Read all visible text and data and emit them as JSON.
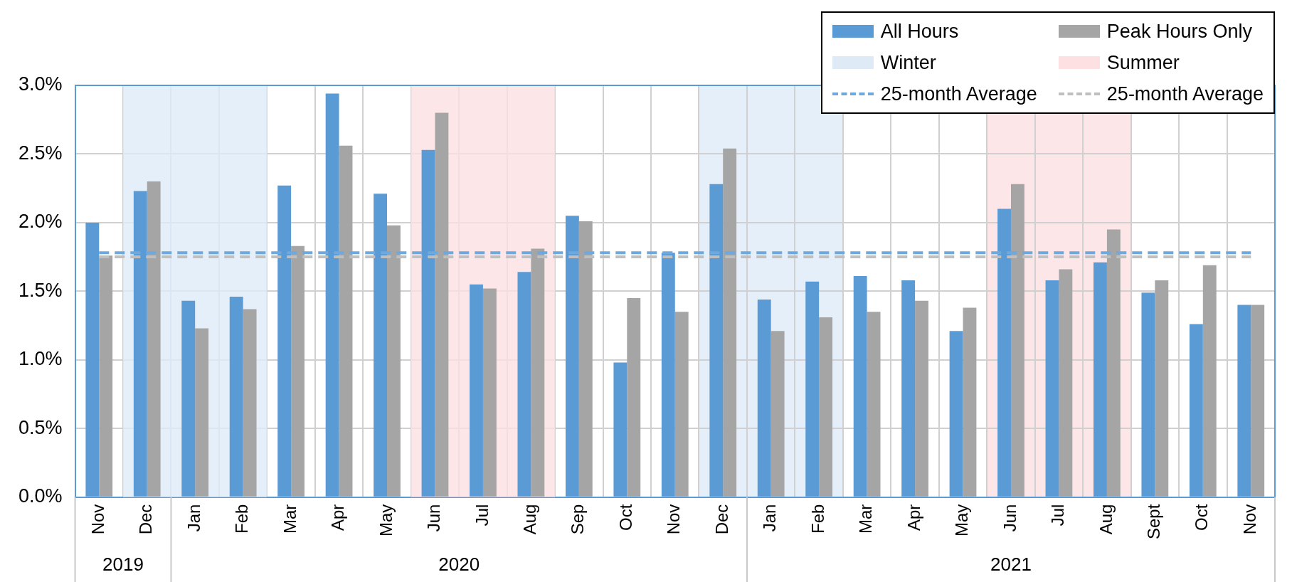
{
  "chart_data": {
    "type": "bar",
    "categories": [
      "Nov",
      "Dec",
      "Jan",
      "Feb",
      "Mar",
      "Apr",
      "May",
      "Jun",
      "Jul",
      "Aug",
      "Sep",
      "Oct",
      "Nov",
      "Dec",
      "Jan",
      "Feb",
      "Mar",
      "Apr",
      "May",
      "Jun",
      "Jul",
      "Aug",
      "Sept",
      "Oct",
      "Nov"
    ],
    "series": [
      {
        "name": "All Hours",
        "color": "#5b9bd5",
        "values": [
          2.0,
          2.23,
          1.43,
          1.46,
          2.27,
          2.94,
          2.21,
          2.53,
          1.55,
          1.64,
          2.05,
          0.98,
          1.78,
          2.28,
          1.44,
          1.57,
          1.61,
          1.58,
          1.21,
          2.1,
          1.58,
          1.71,
          1.49,
          1.26,
          1.4
        ]
      },
      {
        "name": "Peak Hours Only",
        "color": "#a5a5a5",
        "values": [
          1.76,
          2.3,
          1.23,
          1.37,
          1.83,
          2.56,
          1.98,
          2.8,
          1.52,
          1.81,
          2.01,
          1.45,
          1.35,
          2.54,
          1.21,
          1.31,
          1.35,
          1.43,
          1.38,
          2.28,
          1.66,
          1.95,
          1.58,
          1.69,
          1.4
        ]
      }
    ],
    "bands": [
      {
        "axis": "x",
        "from": "Dec",
        "to": "Feb",
        "label": "Winter",
        "color": "#deebf7"
      },
      {
        "axis": "x",
        "from": "Jun",
        "to": "Aug",
        "label": "Summer",
        "color": "#fde0e2"
      }
    ],
    "ref_lines": [
      {
        "axis": "y",
        "value": 1.78,
        "label": "25-month Average",
        "color": "#6fa8dc",
        "line_style": "dashed"
      },
      {
        "axis": "y",
        "value": 1.75,
        "label": "25-month Average",
        "color": "#bfbfbf",
        "line_style": "dashed"
      }
    ],
    "annotations": [
      "2019",
      "2020",
      "2021"
    ],
    "ylim": [
      0,
      3
    ],
    "yticks": [
      {
        "value": 0,
        "label": "0.0%"
      },
      {
        "value": 0.5,
        "label": "0.5%"
      },
      {
        "value": 1,
        "label": "1.0%"
      },
      {
        "value": 1.5,
        "label": "1.5%"
      },
      {
        "value": 2,
        "label": "2.0%"
      },
      {
        "value": 2.5,
        "label": "2.5%"
      },
      {
        "value": 3,
        "label": "3.0%"
      }
    ],
    "grid": true,
    "legend": "top right"
  }
}
